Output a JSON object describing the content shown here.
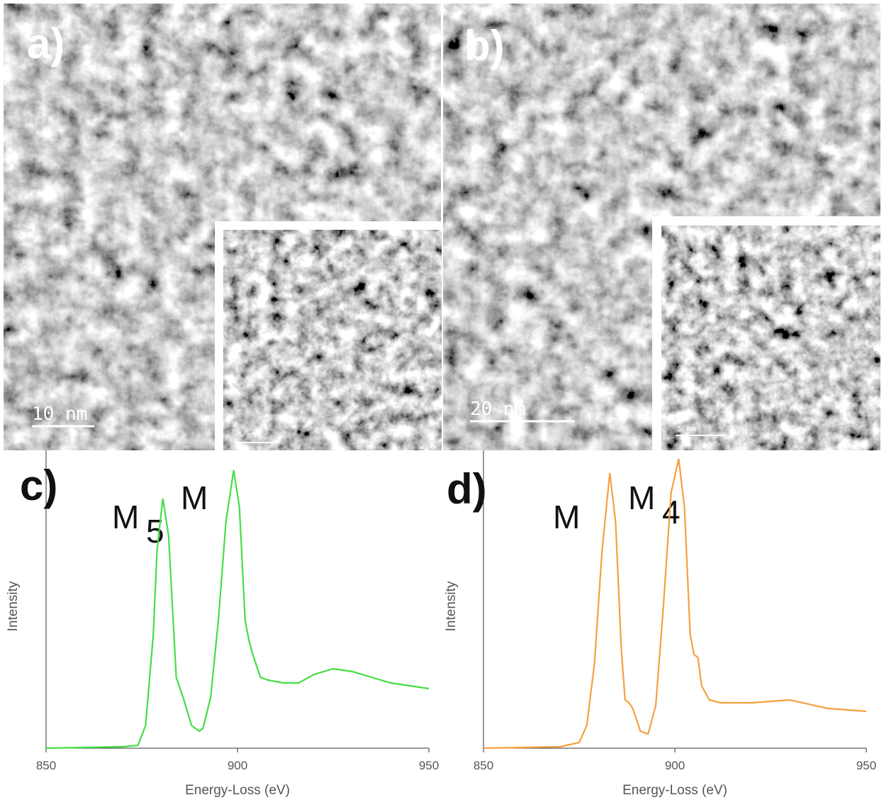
{
  "panels": [
    {
      "label": "a)",
      "scale_bar": "10 nm",
      "inset_scale_bar": "5 nm"
    },
    {
      "label": "b)",
      "scale_bar": "20 nm",
      "inset_scale_bar": "5 nm"
    }
  ],
  "chart_data": [
    {
      "type": "line",
      "title": "c)",
      "xlabel": "Energy-Loss (eV)",
      "ylabel": "Intensity",
      "xlim": [
        850,
        950
      ],
      "ylim": [
        0,
        105
      ],
      "xticks": [
        850,
        900,
        950
      ],
      "annotations": [
        {
          "text": "M",
          "sub": "5"
        },
        {
          "text": "M"
        }
      ],
      "x": [
        850,
        870,
        874,
        876,
        878,
        879,
        880.5,
        882,
        883,
        884,
        886,
        888,
        890,
        891,
        893,
        895,
        897,
        899,
        900.5,
        902,
        903,
        904,
        906,
        908,
        912,
        916,
        920,
        925,
        930,
        935,
        940,
        945,
        950
      ],
      "series": [
        {
          "color": "#44dd44",
          "values": [
            0,
            0.5,
            1,
            8,
            40,
            70,
            88,
            75,
            50,
            25,
            17,
            8,
            6,
            7,
            18,
            45,
            80,
            98,
            85,
            45,
            38,
            33,
            25,
            24,
            23,
            23,
            26,
            28,
            27,
            25,
            23,
            22,
            21
          ]
        }
      ]
    },
    {
      "type": "line",
      "title": "d)",
      "xlabel": "Energy-Loss (eV)",
      "ylabel": "Intensity",
      "xlim": [
        850,
        950
      ],
      "ylim": [
        0,
        105
      ],
      "xticks": [
        850,
        900,
        950
      ],
      "annotations": [
        {
          "text": "M"
        },
        {
          "text": "M",
          "sub": "4"
        }
      ],
      "x": [
        850,
        870,
        875,
        877,
        879,
        881,
        883,
        884.5,
        886,
        887,
        888,
        889,
        891,
        893,
        895,
        897,
        899,
        901,
        902.5,
        904,
        905,
        906,
        907,
        909,
        912,
        920,
        930,
        940,
        950
      ],
      "series": [
        {
          "color": "#f5a040",
          "values": [
            0,
            0.5,
            2,
            8,
            30,
            70,
            97,
            80,
            35,
            17,
            16,
            14,
            6,
            5,
            15,
            50,
            90,
            102,
            85,
            40,
            33,
            32,
            22,
            17,
            16,
            16,
            17,
            14,
            13
          ]
        }
      ]
    }
  ]
}
